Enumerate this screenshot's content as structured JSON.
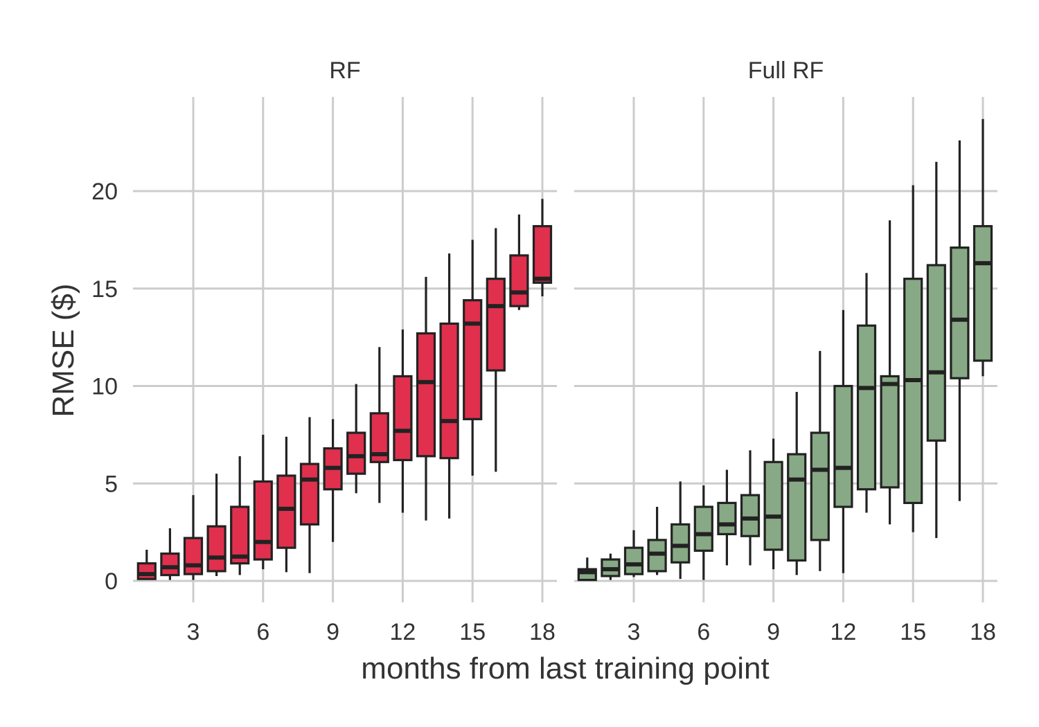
{
  "chart_data": {
    "type": "boxplot",
    "xlabel": "months from last training point",
    "ylabel": "RMSE ($)",
    "xlim": [
      0.4,
      18.5
    ],
    "ylim": [
      -1,
      24.3
    ],
    "x_ticks": [
      3,
      6,
      9,
      12,
      15,
      18
    ],
    "y_ticks": [
      0,
      5,
      10,
      15,
      20
    ],
    "grid": true,
    "panels": [
      {
        "title": "RF",
        "color": "#e0304e",
        "boxes": [
          {
            "x": 1,
            "min": 0.05,
            "q1": 0.1,
            "median": 0.35,
            "q3": 0.9,
            "max": 1.6
          },
          {
            "x": 2,
            "min": 0.05,
            "q1": 0.3,
            "median": 0.7,
            "q3": 1.4,
            "max": 2.7
          },
          {
            "x": 3,
            "min": 0.05,
            "q1": 0.35,
            "median": 0.8,
            "q3": 2.2,
            "max": 4.4
          },
          {
            "x": 4,
            "min": 0.25,
            "q1": 0.5,
            "median": 1.2,
            "q3": 2.8,
            "max": 5.5
          },
          {
            "x": 5,
            "min": 0.3,
            "q1": 0.9,
            "median": 1.25,
            "q3": 3.8,
            "max": 6.4
          },
          {
            "x": 6,
            "min": 0.6,
            "q1": 1.1,
            "median": 2.0,
            "q3": 5.1,
            "max": 7.5
          },
          {
            "x": 7,
            "min": 0.45,
            "q1": 1.7,
            "median": 3.7,
            "q3": 5.4,
            "max": 7.4
          },
          {
            "x": 8,
            "min": 0.4,
            "q1": 2.9,
            "median": 5.2,
            "q3": 6.0,
            "max": 8.4
          },
          {
            "x": 9,
            "min": 2.0,
            "q1": 4.7,
            "median": 5.8,
            "q3": 6.8,
            "max": 8.3
          },
          {
            "x": 10,
            "min": 4.5,
            "q1": 5.5,
            "median": 6.4,
            "q3": 7.6,
            "max": 10.1
          },
          {
            "x": 11,
            "min": 4.0,
            "q1": 6.1,
            "median": 6.5,
            "q3": 8.6,
            "max": 12.0
          },
          {
            "x": 12,
            "min": 3.5,
            "q1": 6.2,
            "median": 7.7,
            "q3": 10.5,
            "max": 12.9
          },
          {
            "x": 13,
            "min": 3.1,
            "q1": 6.4,
            "median": 10.2,
            "q3": 12.7,
            "max": 15.6
          },
          {
            "x": 14,
            "min": 3.2,
            "q1": 6.3,
            "median": 8.2,
            "q3": 13.2,
            "max": 16.8
          },
          {
            "x": 15,
            "min": 5.4,
            "q1": 8.3,
            "median": 13.2,
            "q3": 14.4,
            "max": 17.5
          },
          {
            "x": 16,
            "min": 5.6,
            "q1": 10.8,
            "median": 14.1,
            "q3": 15.5,
            "max": 18.1
          },
          {
            "x": 17,
            "min": 13.9,
            "q1": 14.1,
            "median": 14.8,
            "q3": 16.7,
            "max": 18.8
          },
          {
            "x": 18,
            "min": 14.6,
            "q1": 15.3,
            "median": 15.5,
            "q3": 18.2,
            "max": 19.6
          }
        ]
      },
      {
        "title": "Full RF",
        "color": "#87a985",
        "boxes": [
          {
            "x": 1,
            "min": 0.0,
            "q1": 0.05,
            "median": 0.45,
            "q3": 0.6,
            "max": 1.2
          },
          {
            "x": 2,
            "min": 0.05,
            "q1": 0.25,
            "median": 0.6,
            "q3": 1.1,
            "max": 1.4
          },
          {
            "x": 3,
            "min": 0.2,
            "q1": 0.35,
            "median": 0.85,
            "q3": 1.7,
            "max": 2.6
          },
          {
            "x": 4,
            "min": 0.3,
            "q1": 0.5,
            "median": 1.4,
            "q3": 2.1,
            "max": 3.8
          },
          {
            "x": 5,
            "min": 0.1,
            "q1": 0.95,
            "median": 1.8,
            "q3": 2.9,
            "max": 5.1
          },
          {
            "x": 6,
            "min": 0.05,
            "q1": 1.55,
            "median": 2.4,
            "q3": 3.8,
            "max": 4.9
          },
          {
            "x": 7,
            "min": 0.8,
            "q1": 2.4,
            "median": 2.9,
            "q3": 4.0,
            "max": 5.7
          },
          {
            "x": 8,
            "min": 0.8,
            "q1": 2.3,
            "median": 3.2,
            "q3": 4.4,
            "max": 6.7
          },
          {
            "x": 9,
            "min": 0.6,
            "q1": 1.6,
            "median": 3.3,
            "q3": 6.1,
            "max": 7.3
          },
          {
            "x": 10,
            "min": 0.3,
            "q1": 1.05,
            "median": 5.2,
            "q3": 6.5,
            "max": 9.7
          },
          {
            "x": 11,
            "min": 0.5,
            "q1": 2.1,
            "median": 5.7,
            "q3": 7.6,
            "max": 11.8
          },
          {
            "x": 12,
            "min": 0.4,
            "q1": 3.8,
            "median": 5.8,
            "q3": 10.0,
            "max": 13.9
          },
          {
            "x": 13,
            "min": 3.5,
            "q1": 4.7,
            "median": 9.9,
            "q3": 13.1,
            "max": 15.8
          },
          {
            "x": 14,
            "min": 2.9,
            "q1": 4.8,
            "median": 10.1,
            "q3": 10.5,
            "max": 18.5
          },
          {
            "x": 15,
            "min": 2.5,
            "q1": 4.0,
            "median": 10.3,
            "q3": 15.5,
            "max": 20.3
          },
          {
            "x": 16,
            "min": 2.2,
            "q1": 7.2,
            "median": 10.7,
            "q3": 16.2,
            "max": 21.5
          },
          {
            "x": 17,
            "min": 4.1,
            "q1": 10.4,
            "median": 13.4,
            "q3": 17.1,
            "max": 22.6
          },
          {
            "x": 18,
            "min": 10.5,
            "q1": 11.3,
            "median": 16.3,
            "q3": 18.2,
            "max": 23.7
          }
        ]
      }
    ]
  }
}
